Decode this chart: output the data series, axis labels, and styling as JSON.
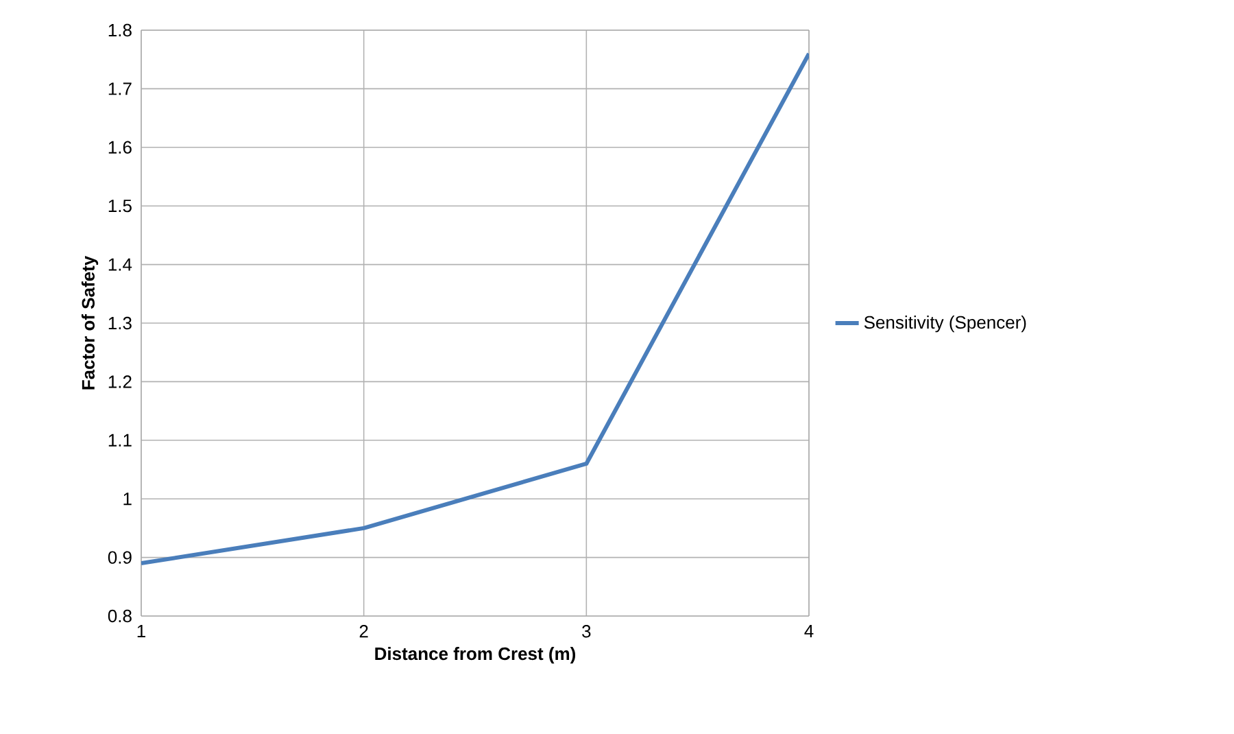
{
  "chart_data": {
    "type": "line",
    "xlabel": "Distance from Crest (m)",
    "ylabel": "Factor of Safety",
    "x": [
      1,
      2,
      3,
      4
    ],
    "series": [
      {
        "name": "Sensitivity (Spencer)",
        "color": "#4a7ebb",
        "values": [
          0.89,
          0.95,
          1.06,
          1.76
        ]
      }
    ],
    "xlim": [
      1,
      4
    ],
    "xticks": [
      1,
      2,
      3,
      4
    ],
    "ylim": [
      0.8,
      1.8
    ],
    "yticks": [
      0.8,
      0.9,
      1,
      1.1,
      1.2,
      1.3,
      1.4,
      1.5,
      1.6,
      1.7,
      1.8
    ],
    "grid": true,
    "legend": "right",
    "marker": "none",
    "line_style": "solid"
  }
}
